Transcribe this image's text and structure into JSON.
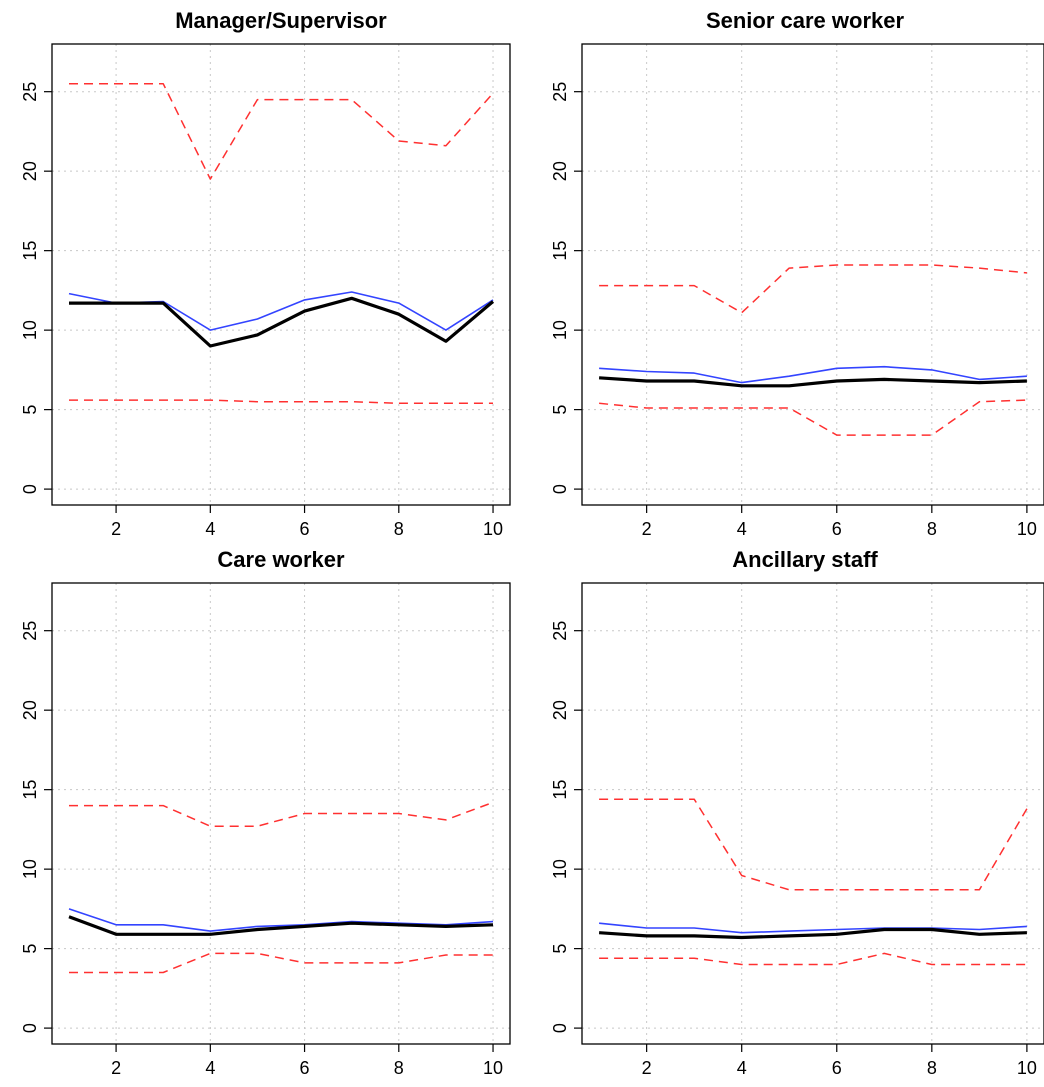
{
  "chart_data": [
    {
      "type": "line",
      "title": "Manager/Supervisor",
      "xlabel": "",
      "ylabel": "",
      "x": [
        1,
        2,
        3,
        4,
        5,
        6,
        7,
        8,
        9,
        10
      ],
      "xlim": [
        1,
        10
      ],
      "ylim": [
        0,
        27
      ],
      "xticks": [
        2,
        4,
        6,
        8,
        10
      ],
      "yticks": [
        0,
        5,
        10,
        15,
        20,
        25
      ],
      "grid": true,
      "series": [
        {
          "values": [
            25.5,
            25.5,
            25.5,
            19.5,
            24.5,
            24.5,
            24.5,
            21.9,
            21.6,
            24.9
          ],
          "color": "#ff3030",
          "style": "dashed"
        },
        {
          "values": [
            5.6,
            5.6,
            5.6,
            5.6,
            5.5,
            5.5,
            5.5,
            5.4,
            5.4,
            5.4
          ],
          "color": "#ff3030",
          "style": "dashed"
        },
        {
          "values": [
            12.3,
            11.7,
            11.8,
            10.0,
            10.7,
            11.9,
            12.4,
            11.7,
            10.0,
            11.9
          ],
          "color": "#3344ff",
          "style": "solid"
        },
        {
          "values": [
            11.7,
            11.7,
            11.7,
            9.0,
            9.7,
            11.2,
            12.0,
            11.0,
            9.3,
            11.8
          ],
          "color": "#000000",
          "style": "thick"
        }
      ]
    },
    {
      "type": "line",
      "title": "Senior care worker",
      "xlabel": "",
      "ylabel": "",
      "x": [
        1,
        2,
        3,
        4,
        5,
        6,
        7,
        8,
        9,
        10
      ],
      "xlim": [
        1,
        10
      ],
      "ylim": [
        0,
        27
      ],
      "xticks": [
        2,
        4,
        6,
        8,
        10
      ],
      "yticks": [
        0,
        5,
        10,
        15,
        20,
        25
      ],
      "grid": true,
      "series": [
        {
          "values": [
            12.8,
            12.8,
            12.8,
            11.1,
            13.9,
            14.1,
            14.1,
            14.1,
            13.9,
            13.6
          ],
          "color": "#ff3030",
          "style": "dashed"
        },
        {
          "values": [
            5.4,
            5.1,
            5.1,
            5.1,
            5.1,
            3.4,
            3.4,
            3.4,
            5.5,
            5.6
          ],
          "color": "#ff3030",
          "style": "dashed"
        },
        {
          "values": [
            7.6,
            7.4,
            7.3,
            6.7,
            7.1,
            7.6,
            7.7,
            7.5,
            6.9,
            7.1
          ],
          "color": "#3344ff",
          "style": "solid"
        },
        {
          "values": [
            7.0,
            6.8,
            6.8,
            6.5,
            6.5,
            6.8,
            6.9,
            6.8,
            6.7,
            6.8
          ],
          "color": "#000000",
          "style": "thick"
        }
      ]
    },
    {
      "type": "line",
      "title": "Care worker",
      "xlabel": "",
      "ylabel": "",
      "x": [
        1,
        2,
        3,
        4,
        5,
        6,
        7,
        8,
        9,
        10
      ],
      "xlim": [
        1,
        10
      ],
      "ylim": [
        0,
        27
      ],
      "xticks": [
        2,
        4,
        6,
        8,
        10
      ],
      "yticks": [
        0,
        5,
        10,
        15,
        20,
        25
      ],
      "grid": true,
      "series": [
        {
          "values": [
            14.0,
            14.0,
            14.0,
            12.7,
            12.7,
            13.5,
            13.5,
            13.5,
            13.1,
            14.2
          ],
          "color": "#ff3030",
          "style": "dashed"
        },
        {
          "values": [
            3.5,
            3.5,
            3.5,
            4.7,
            4.7,
            4.1,
            4.1,
            4.1,
            4.6,
            4.6
          ],
          "color": "#ff3030",
          "style": "dashed"
        },
        {
          "values": [
            7.5,
            6.5,
            6.5,
            6.1,
            6.4,
            6.5,
            6.7,
            6.6,
            6.5,
            6.7
          ],
          "color": "#3344ff",
          "style": "solid"
        },
        {
          "values": [
            7.0,
            5.9,
            5.9,
            5.9,
            6.2,
            6.4,
            6.6,
            6.5,
            6.4,
            6.5
          ],
          "color": "#000000",
          "style": "thick"
        }
      ]
    },
    {
      "type": "line",
      "title": "Ancillary staff",
      "xlabel": "",
      "ylabel": "",
      "x": [
        1,
        2,
        3,
        4,
        5,
        6,
        7,
        8,
        9,
        10
      ],
      "xlim": [
        1,
        10
      ],
      "ylim": [
        0,
        27
      ],
      "xticks": [
        2,
        4,
        6,
        8,
        10
      ],
      "yticks": [
        0,
        5,
        10,
        15,
        20,
        25
      ],
      "grid": true,
      "series": [
        {
          "values": [
            14.4,
            14.4,
            14.4,
            9.6,
            8.7,
            8.7,
            8.7,
            8.7,
            8.7,
            13.8
          ],
          "color": "#ff3030",
          "style": "dashed"
        },
        {
          "values": [
            4.4,
            4.4,
            4.4,
            4.0,
            4.0,
            4.0,
            4.7,
            4.0,
            4.0,
            4.0
          ],
          "color": "#ff3030",
          "style": "dashed"
        },
        {
          "values": [
            6.6,
            6.3,
            6.3,
            6.0,
            6.1,
            6.2,
            6.3,
            6.3,
            6.2,
            6.4
          ],
          "color": "#3344ff",
          "style": "solid"
        },
        {
          "values": [
            6.0,
            5.8,
            5.8,
            5.7,
            5.8,
            5.9,
            6.2,
            6.2,
            5.9,
            6.0
          ],
          "color": "#000000",
          "style": "thick"
        }
      ]
    }
  ]
}
